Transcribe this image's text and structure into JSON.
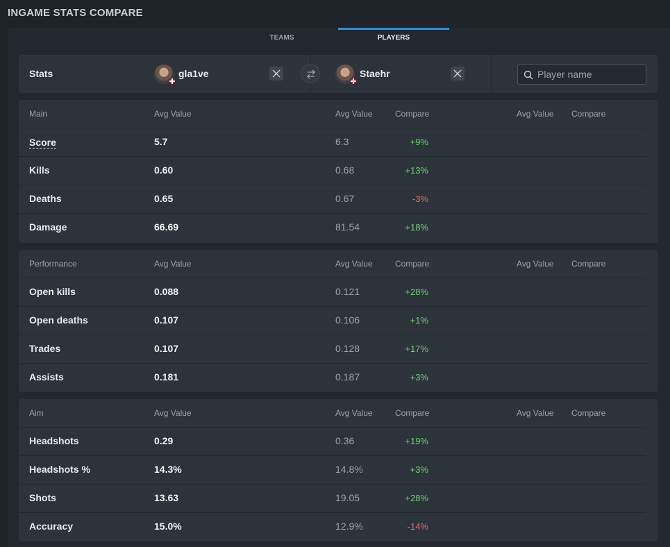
{
  "page": {
    "title": "INGAME STATS COMPARE"
  },
  "tabs": [
    {
      "label": "TEAMS"
    },
    {
      "label": "PLAYERS"
    }
  ],
  "header": {
    "stats_label": "Stats",
    "player1": {
      "name": "gla1ve",
      "flag": "denmark-flag-icon"
    },
    "player2": {
      "name": "Staehr",
      "flag": "denmark-flag-icon"
    },
    "search_placeholder": "Player name"
  },
  "columns": {
    "avg": "Avg Value",
    "compare": "Compare"
  },
  "sections": [
    {
      "title": "Main",
      "rows": [
        {
          "name": "Score",
          "v1": "5.7",
          "v2": "6.3",
          "cmp": "+9%",
          "sign": "pos"
        },
        {
          "name": "Kills",
          "v1": "0.60",
          "v2": "0.68",
          "cmp": "+13%",
          "sign": "pos"
        },
        {
          "name": "Deaths",
          "v1": "0.65",
          "v2": "0.67",
          "cmp": "-3%",
          "sign": "neg"
        },
        {
          "name": "Damage",
          "v1": "66.69",
          "v2": "81.54",
          "cmp": "+18%",
          "sign": "pos"
        }
      ]
    },
    {
      "title": "Performance",
      "rows": [
        {
          "name": "Open kills",
          "v1": "0.088",
          "v2": "0.121",
          "cmp": "+28%",
          "sign": "pos"
        },
        {
          "name": "Open deaths",
          "v1": "0.107",
          "v2": "0.106",
          "cmp": "+1%",
          "sign": "pos"
        },
        {
          "name": "Trades",
          "v1": "0.107",
          "v2": "0.128",
          "cmp": "+17%",
          "sign": "pos"
        },
        {
          "name": "Assists",
          "v1": "0.181",
          "v2": "0.187",
          "cmp": "+3%",
          "sign": "pos"
        }
      ]
    },
    {
      "title": "Aim",
      "rows": [
        {
          "name": "Headshots",
          "v1": "0.29",
          "v2": "0.36",
          "cmp": "+19%",
          "sign": "pos"
        },
        {
          "name": "Headshots %",
          "v1": "14.3%",
          "v2": "14.8%",
          "cmp": "+3%",
          "sign": "pos"
        },
        {
          "name": "Shots",
          "v1": "13.63",
          "v2": "19.05",
          "cmp": "+28%",
          "sign": "pos"
        },
        {
          "name": "Accuracy",
          "v1": "15.0%",
          "v2": "12.9%",
          "cmp": "-14%",
          "sign": "neg"
        }
      ]
    }
  ],
  "colors": {
    "accent": "#2d8fe0",
    "positive": "#6fcf76",
    "negative": "#e56a6a"
  }
}
